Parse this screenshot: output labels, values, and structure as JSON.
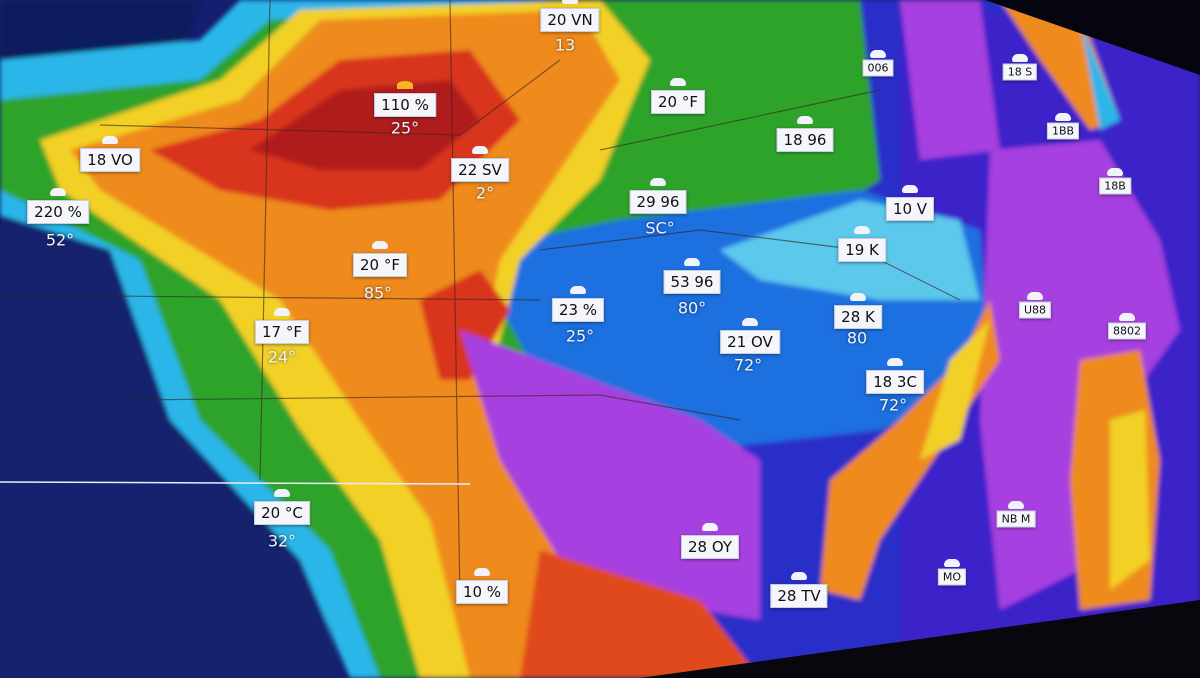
{
  "map": {
    "colors": {
      "ocean": "#141d6e",
      "deep_ocean": "#0f1a5c",
      "cyan": "#29b6e8",
      "green": "#2fa32a",
      "yellow": "#f2d027",
      "orange": "#ef8a1f",
      "red": "#d8341c",
      "dark_red": "#b01a1a",
      "blue": "#1f6fe0",
      "purple": "#a63fe0",
      "violet": "#7b2fe6"
    },
    "labels": [
      {
        "text": "20 VN",
        "sub": "13",
        "icon": "cloud-icon"
      },
      {
        "text": "110 %",
        "sub": "25°",
        "icon": "sun-icon"
      },
      {
        "text": "18 VO",
        "sub": "",
        "icon": "cloud-icon"
      },
      {
        "text": "220 %",
        "sub": "52°",
        "icon": "cloud-icon"
      },
      {
        "text": "22 SV",
        "sub": "2°",
        "icon": "cloud-icon"
      },
      {
        "text": "20 °F",
        "sub": "",
        "icon": "cloud-icon"
      },
      {
        "text": "18 96",
        "sub": "",
        "icon": "cloud-icon"
      },
      {
        "text": "29 96",
        "sub": "SC°",
        "icon": "cloud-icon"
      },
      {
        "text": "20 °F",
        "sub": "85°",
        "icon": "cloud-icon"
      },
      {
        "text": "53 96",
        "sub": "80°",
        "icon": "cloud-icon"
      },
      {
        "text": "23 %",
        "sub": "25°",
        "icon": "cloud-icon"
      },
      {
        "text": "10 V",
        "sub": "",
        "icon": "cloud-icon"
      },
      {
        "text": "19 K",
        "sub": "",
        "icon": "cloud-icon"
      },
      {
        "text": "28 K",
        "sub": "80",
        "icon": "cloud-icon"
      },
      {
        "text": "21 OV",
        "sub": "72°",
        "icon": "cloud-icon"
      },
      {
        "text": "18 3C",
        "sub": "72°",
        "icon": "cloud-icon"
      },
      {
        "text": "17 °F",
        "sub": "24°",
        "icon": "cloud-icon"
      },
      {
        "text": "20 °C",
        "sub": "32°",
        "icon": "cloud-icon"
      },
      {
        "text": "10 %",
        "sub": "",
        "icon": "cloud-icon"
      },
      {
        "text": "28 OY",
        "sub": "",
        "icon": "cloud-icon"
      },
      {
        "text": "28 TV",
        "sub": "",
        "icon": "cloud-icon"
      },
      {
        "text": "NB M",
        "sub": "",
        "icon": "cloud-icon"
      },
      {
        "text": "MO",
        "sub": "",
        "icon": "cloud-icon"
      },
      {
        "text": "006",
        "sub": "",
        "icon": "cloud-icon"
      },
      {
        "text": "18 S",
        "sub": "",
        "icon": "cloud-icon"
      },
      {
        "text": "1BB",
        "sub": "",
        "icon": "cloud-icon"
      },
      {
        "text": "18B",
        "sub": "",
        "icon": "cloud-icon"
      },
      {
        "text": "U88",
        "sub": "",
        "icon": "cloud-icon"
      },
      {
        "text": "8802",
        "sub": "",
        "icon": "cloud-icon"
      }
    ]
  }
}
